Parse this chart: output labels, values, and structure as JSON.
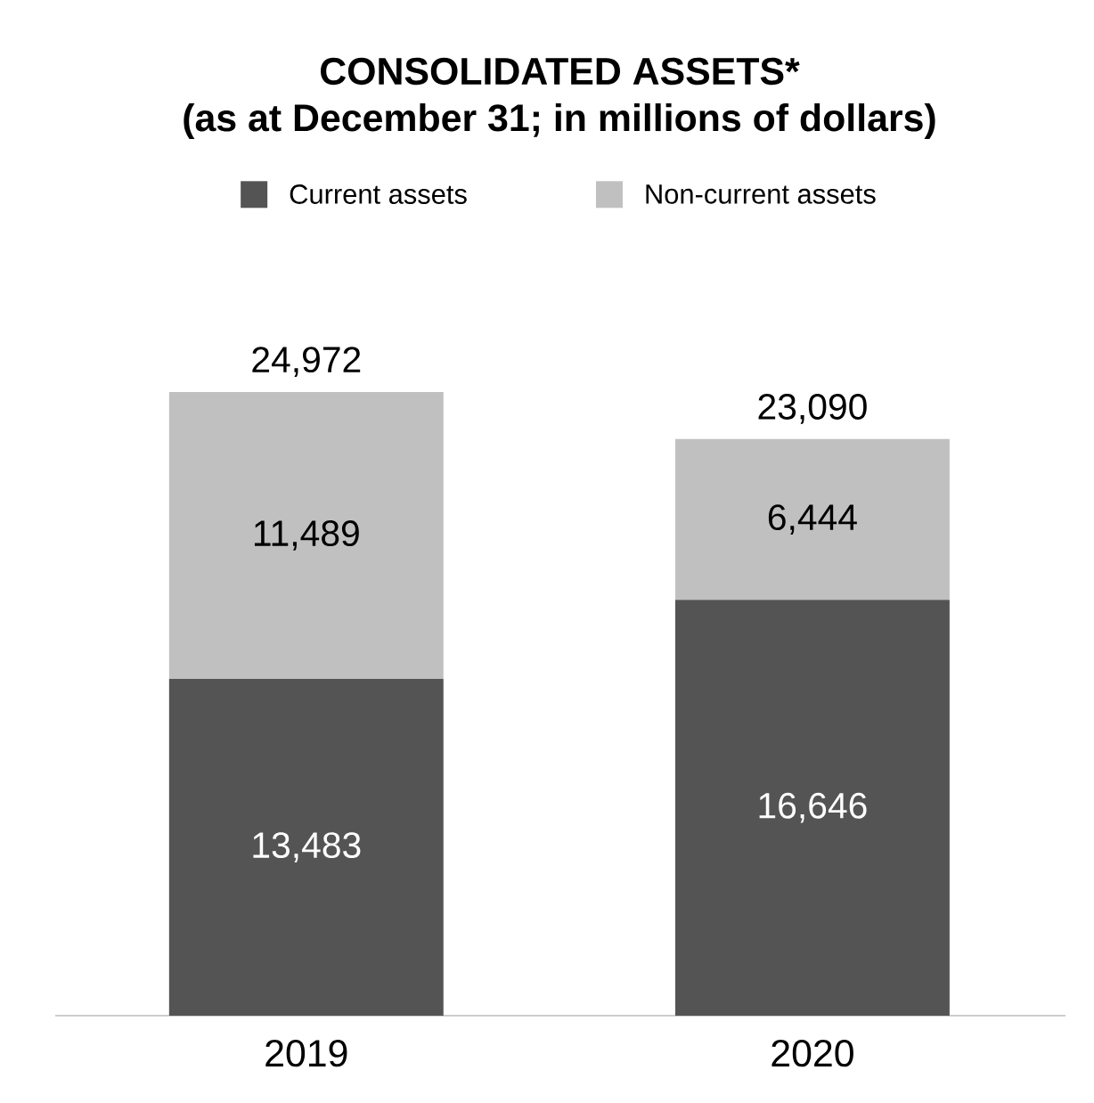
{
  "chart_data": {
    "type": "bar",
    "stacked": true,
    "title": "CONSOLIDATED ASSETS*",
    "subtitle": "(as at December 31; in millions of dollars)",
    "categories": [
      "2019",
      "2020"
    ],
    "series": [
      {
        "name": "Current assets",
        "color": "#545454",
        "values": [
          13483,
          16646
        ],
        "value_labels": [
          "13,483",
          "16,646"
        ]
      },
      {
        "name": "Non-current assets",
        "color": "#c0c0c0",
        "values": [
          11489,
          6444
        ],
        "value_labels": [
          "11,489",
          "6,444"
        ]
      }
    ],
    "totals": [
      "24,972",
      "23,090"
    ],
    "legend": "top"
  }
}
